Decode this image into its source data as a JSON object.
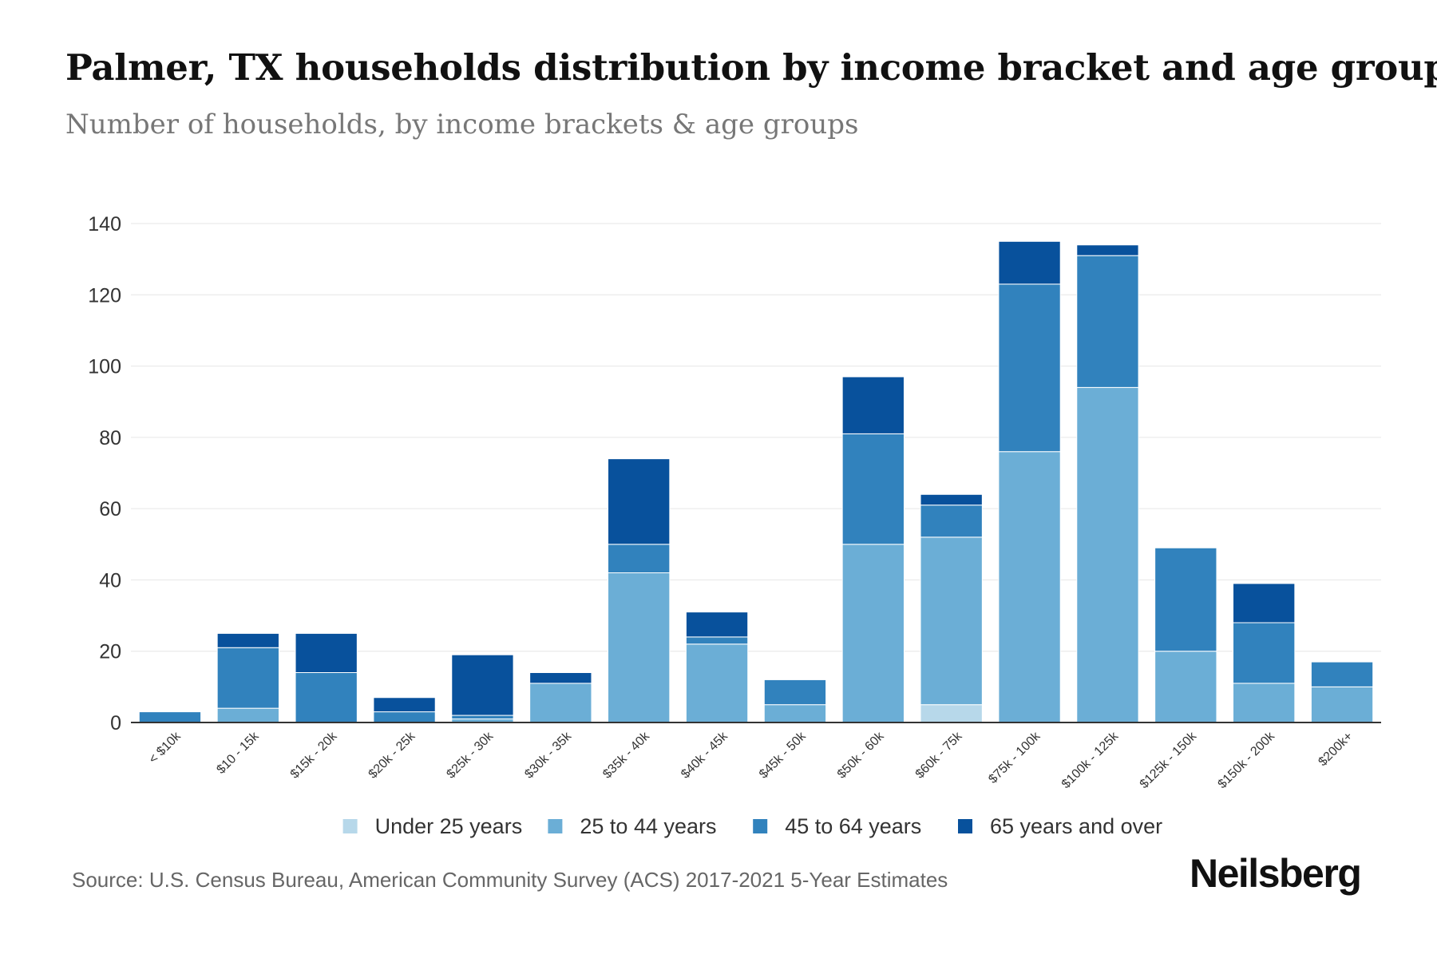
{
  "title": "Palmer, TX households distribution by income bracket and age group",
  "subtitle": "Number of households, by income brackets & age groups",
  "source": "Source: U.S. Census Bureau, American Community Survey (ACS) 2017-2021 5-Year Estimates",
  "brand": "Neilsberg",
  "chart_data": {
    "type": "bar",
    "stacked": true,
    "categories": [
      "< $10k",
      "$10 - 15k",
      "$15k - 20k",
      "$20k - 25k",
      "$25k - 30k",
      "$30k - 35k",
      "$35k - 40k",
      "$40k - 45k",
      "$45k - 50k",
      "$50k - 60k",
      "$60k - 75k",
      "$75k - 100k",
      "$100k - 125k",
      "$125k - 150k",
      "$150k - 200k",
      "$200k+"
    ],
    "series": [
      {
        "name": "Under 25 years",
        "color": "#b7d8ea",
        "values": [
          0,
          0,
          0,
          0,
          0,
          0,
          0,
          0,
          0,
          0,
          5,
          0,
          0,
          0,
          0,
          0
        ]
      },
      {
        "name": "25 to 44 years",
        "color": "#6baed6",
        "values": [
          0,
          4,
          0,
          0,
          1,
          11,
          42,
          22,
          5,
          50,
          47,
          76,
          94,
          20,
          11,
          10
        ]
      },
      {
        "name": "45 to 64 years",
        "color": "#3182bd",
        "values": [
          3,
          17,
          14,
          3,
          1,
          0,
          8,
          2,
          7,
          31,
          9,
          47,
          37,
          29,
          17,
          7
        ]
      },
      {
        "name": "65 years and over",
        "color": "#08519c",
        "values": [
          0,
          4,
          11,
          4,
          17,
          3,
          24,
          7,
          0,
          16,
          3,
          12,
          3,
          0,
          11,
          0
        ]
      }
    ],
    "yticks": [
      0,
      20,
      40,
      60,
      80,
      100,
      120,
      140
    ],
    "ylim": [
      0,
      140
    ],
    "xlabel": "",
    "ylabel": "",
    "grid": true,
    "legend_position": "bottom-center"
  }
}
